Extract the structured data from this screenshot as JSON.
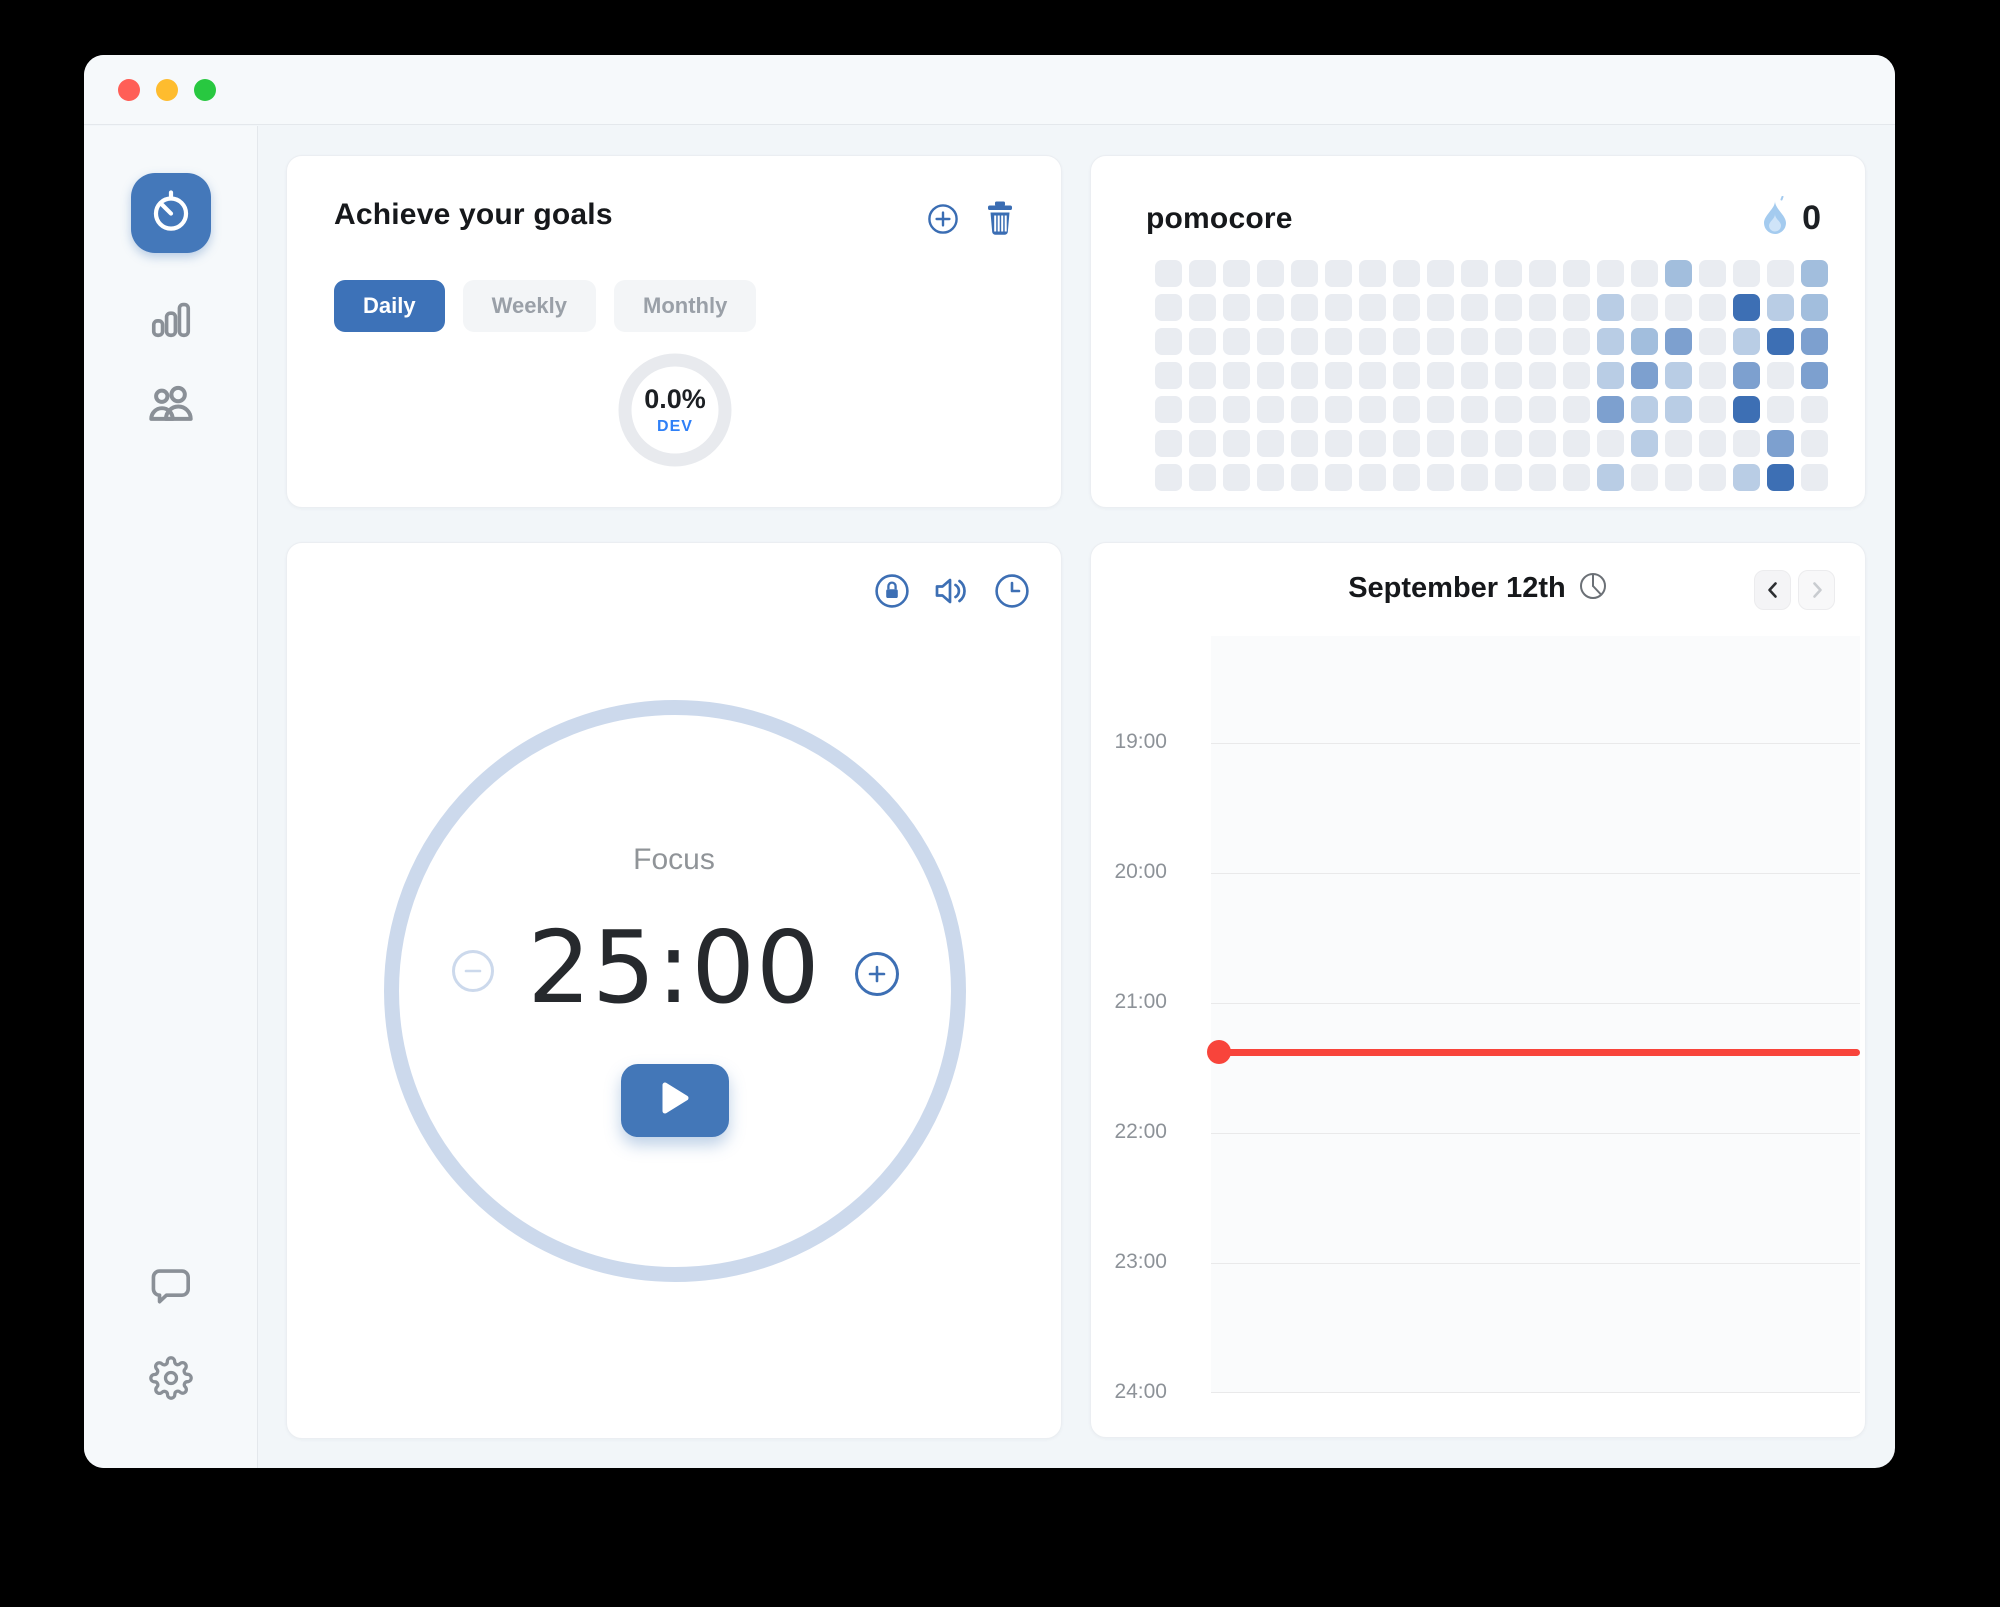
{
  "window": {
    "controls": [
      {
        "name": "close",
        "color": "#ff5f57"
      },
      {
        "name": "minimize",
        "color": "#febc2e"
      },
      {
        "name": "zoom",
        "color": "#28c840"
      }
    ]
  },
  "sidebar": {
    "items": [
      {
        "id": "timer",
        "active": true
      },
      {
        "id": "statistics",
        "active": false
      },
      {
        "id": "friends",
        "active": false
      },
      {
        "id": "feedback",
        "active": false
      },
      {
        "id": "settings",
        "active": false
      }
    ]
  },
  "goals": {
    "title": "Achieve your goals",
    "tabs": [
      {
        "label": "Daily",
        "active": true
      },
      {
        "label": "Weekly",
        "active": false
      },
      {
        "label": "Monthly",
        "active": false
      }
    ],
    "progress": {
      "percent": "0.0%",
      "label": "DEV"
    }
  },
  "streak": {
    "title": "pomocore",
    "count": "0",
    "heatmap": {
      "columns": 20,
      "rows": 7,
      "palette": [
        "#e9ecf1",
        "#b9cde5",
        "#a2bedd",
        "#7da0cf",
        "#3d6fb4"
      ],
      "cells": [
        [
          0,
          0,
          0,
          0,
          0,
          0,
          0,
          0,
          0,
          0,
          0,
          0,
          0,
          0,
          0,
          2,
          0,
          0,
          0,
          2
        ],
        [
          0,
          0,
          0,
          0,
          0,
          0,
          0,
          0,
          0,
          0,
          0,
          0,
          0,
          1,
          0,
          0,
          0,
          4,
          1,
          2
        ],
        [
          0,
          0,
          0,
          0,
          0,
          0,
          0,
          0,
          0,
          0,
          0,
          0,
          0,
          1,
          2,
          3,
          0,
          1,
          4,
          3
        ],
        [
          0,
          0,
          0,
          0,
          0,
          0,
          0,
          0,
          0,
          0,
          0,
          0,
          0,
          1,
          3,
          1,
          0,
          3,
          0,
          3
        ],
        [
          0,
          0,
          0,
          0,
          0,
          0,
          0,
          0,
          0,
          0,
          0,
          0,
          0,
          3,
          1,
          1,
          0,
          4,
          0,
          0
        ],
        [
          0,
          0,
          0,
          0,
          0,
          0,
          0,
          0,
          0,
          0,
          0,
          0,
          0,
          0,
          1,
          0,
          0,
          0,
          3,
          0
        ],
        [
          0,
          0,
          0,
          0,
          0,
          0,
          0,
          0,
          0,
          0,
          0,
          0,
          0,
          1,
          0,
          0,
          0,
          1,
          4,
          0
        ]
      ]
    }
  },
  "timer": {
    "mode": "Focus",
    "time": "25:00"
  },
  "schedule": {
    "title": "September 12th",
    "ticks": [
      "19:00",
      "20:00",
      "21:00",
      "22:00",
      "23:00",
      "24:00"
    ],
    "now_marker": {
      "time": "21:23",
      "color": "#f8443b"
    }
  }
}
